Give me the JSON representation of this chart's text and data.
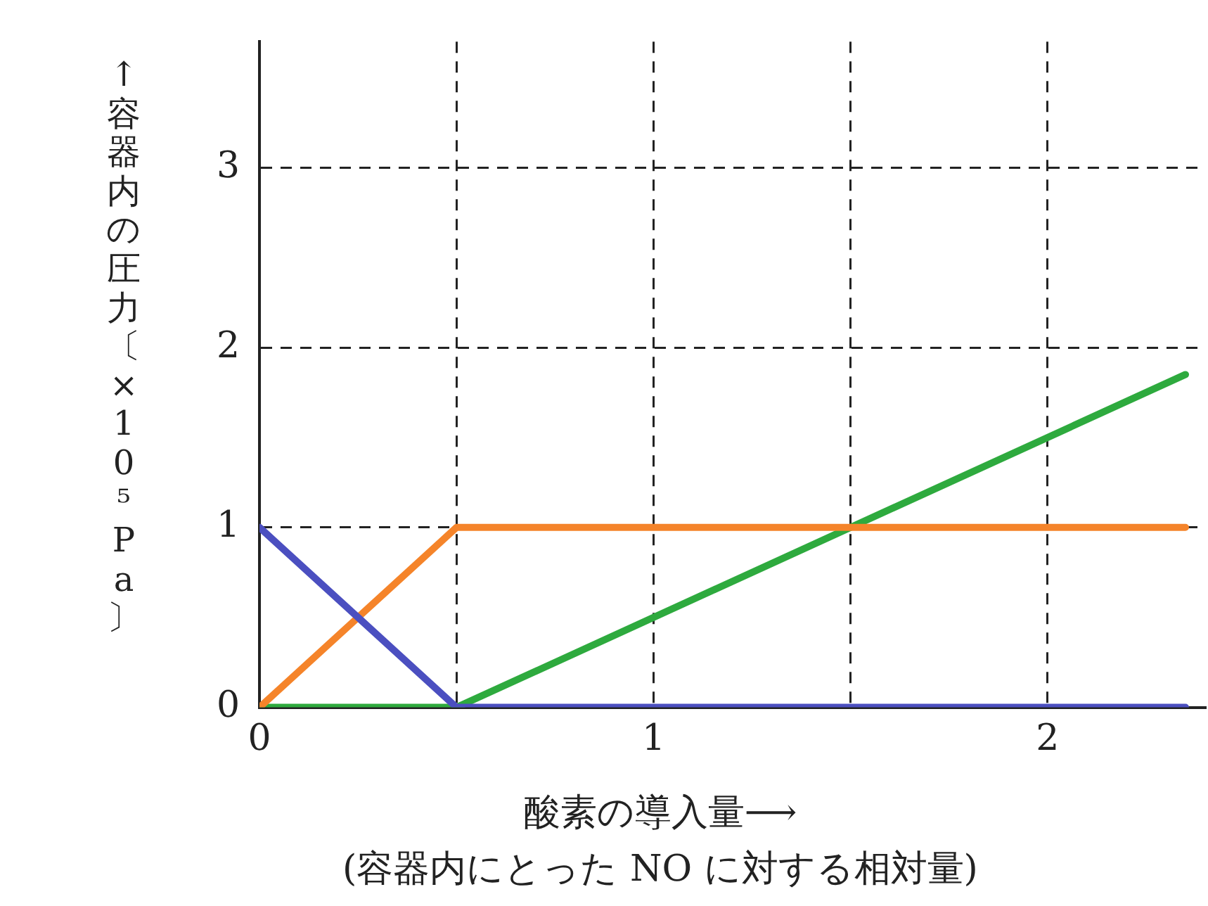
{
  "chart_data": {
    "type": "line",
    "xlabel": "酸素の導入量⟶",
    "ylabel": "↑容器内の圧力〔×10⁵ Pa〕",
    "annotations": [
      "(容器内にとった NO に対する相対量)"
    ],
    "xlim": [
      0,
      2.4
    ],
    "xticks": [
      0,
      {
        "value": 0.5,
        "label": null
      },
      1,
      {
        "value": 1.5,
        "label": null
      },
      2
    ],
    "ylim": [
      0,
      3.7
    ],
    "yticks": [
      0,
      1,
      2,
      3
    ],
    "grid": true,
    "line_style": "solid",
    "marker": "none",
    "legend": false,
    "series": [
      {
        "color": "#4b4fc0",
        "x": [
          0,
          0.5,
          2.35
        ],
        "values": [
          1,
          0,
          0
        ]
      },
      {
        "color": "#f5842a",
        "x": [
          0,
          0.5,
          2.35
        ],
        "values": [
          0,
          1,
          1
        ]
      },
      {
        "color": "#2eaa3e",
        "x": [
          0,
          0.5,
          2.35
        ],
        "values": [
          0,
          0,
          1.85
        ]
      }
    ]
  }
}
